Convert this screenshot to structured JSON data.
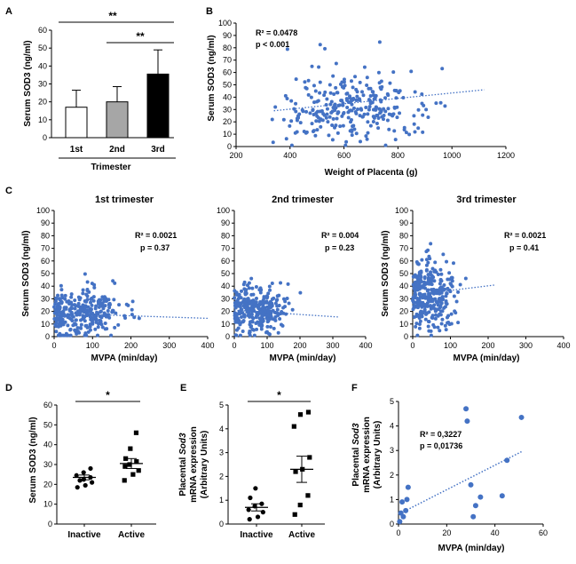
{
  "panels": {
    "A": "A",
    "B": "B",
    "C": "C",
    "D": "D",
    "E": "E",
    "F": "F"
  },
  "colors": {
    "dot": "#4472c4",
    "trend": "#4472c4",
    "bar_1st": "#ffffff",
    "bar_2nd": "#a6a6a6",
    "bar_3rd": "#000000",
    "ink": "#000000"
  },
  "chart_data": [
    {
      "id": "A",
      "type": "bar",
      "title": "",
      "xlabel": "Trimester",
      "ylabel": "Serum SOD3 (ng/ml)",
      "categories": [
        "1st",
        "2nd",
        "3rd"
      ],
      "values": [
        17,
        20,
        35.5
      ],
      "error": [
        9.5,
        8.5,
        13.5
      ],
      "ylim": [
        0,
        60
      ],
      "yticks": [
        0,
        10,
        20,
        30,
        40,
        50,
        60
      ],
      "significance": [
        {
          "from": 0,
          "to": 2,
          "label": "**"
        },
        {
          "from": 1,
          "to": 2,
          "label": "**"
        }
      ]
    },
    {
      "id": "B",
      "type": "scatter",
      "xlabel": "Weight of Placenta (g)",
      "ylabel": "Serum SOD3 (ng/ml)",
      "xlim": [
        200,
        1200
      ],
      "ylim": [
        0,
        100
      ],
      "xticks": [
        200,
        400,
        600,
        800,
        1000,
        1200
      ],
      "yticks": [
        0,
        10,
        20,
        30,
        40,
        50,
        60,
        70,
        80,
        90,
        100
      ],
      "annotation": [
        "R² = 0.0478",
        "p < 0.001"
      ],
      "trend": {
        "x": [
          340,
          1120
        ],
        "y": [
          29,
          46
        ]
      },
      "sample": {
        "n": 290,
        "seed": 11,
        "xmean": 640,
        "xsd": 140,
        "ymean": 34,
        "ysd": 14,
        "xmin": 330,
        "xmax": 1130
      }
    },
    {
      "id": "C1",
      "type": "scatter",
      "title": "1st trimester",
      "xlabel": "MVPA (min/day)",
      "ylabel": "Serum SOD3 (ng/ml)",
      "xlim": [
        0,
        400
      ],
      "ylim": [
        0,
        100
      ],
      "xticks": [
        0,
        100,
        200,
        300,
        400
      ],
      "yticks": [
        0,
        10,
        20,
        30,
        40,
        50,
        60,
        70,
        80,
        90,
        100
      ],
      "annotation": [
        "R² = 0.0021",
        "p = 0.37"
      ],
      "trend": {
        "x": [
          0,
          400
        ],
        "y": [
          18.5,
          14.5
        ]
      },
      "sample": {
        "n": 300,
        "seed": 23,
        "xmean": 70,
        "xsd": 55,
        "ymean": 19,
        "ysd": 9,
        "xmin": 0,
        "xmax": 395
      }
    },
    {
      "id": "C2",
      "type": "scatter",
      "title": "2nd trimester",
      "xlabel": "MVPA (min/day)",
      "ylabel": "",
      "xlim": [
        0,
        400
      ],
      "ylim": [
        0,
        100
      ],
      "xticks": [
        0,
        100,
        200,
        300,
        400
      ],
      "yticks": [
        0,
        10,
        20,
        30,
        40,
        50,
        60,
        70,
        80,
        90,
        100
      ],
      "annotation": [
        "R² = 0.004",
        "p = 0.23"
      ],
      "trend": {
        "x": [
          0,
          320
        ],
        "y": [
          21,
          15.5
        ]
      },
      "sample": {
        "n": 300,
        "seed": 37,
        "xmean": 65,
        "xsd": 45,
        "ymean": 21,
        "ysd": 9,
        "xmin": 0,
        "xmax": 320
      }
    },
    {
      "id": "C3",
      "type": "scatter",
      "title": "3rd trimester",
      "xlabel": "MVPA (min/day)",
      "ylabel": "Serum SOD3 (ng/ml)",
      "xlim": [
        0,
        400
      ],
      "ylim": [
        0,
        100
      ],
      "xticks": [
        0,
        100,
        200,
        300,
        400
      ],
      "yticks": [
        0,
        10,
        20,
        30,
        40,
        50,
        60,
        70,
        80,
        90,
        100
      ],
      "annotation": [
        "R² = 0.0021",
        "p = 0.41"
      ],
      "trend": {
        "x": [
          0,
          220
        ],
        "y": [
          33,
          41
        ]
      },
      "sample": {
        "n": 300,
        "seed": 53,
        "xmean": 45,
        "xsd": 35,
        "ymean": 34,
        "ysd": 14,
        "xmin": 0,
        "xmax": 220
      }
    },
    {
      "id": "D",
      "type": "dot",
      "xlabel": "",
      "ylabel": "Serum SOD3 (ng/ml)",
      "categories": [
        "Inactive",
        "Active"
      ],
      "ylim": [
        0,
        60
      ],
      "yticks": [
        0,
        10,
        20,
        30,
        40,
        50,
        60
      ],
      "groups": [
        {
          "name": "Inactive",
          "marker": "circle",
          "values": [
            18.5,
            19.5,
            21,
            22,
            22.5,
            23.5,
            24.5,
            26,
            28
          ],
          "mean": 23.5,
          "sem": 1.2
        },
        {
          "name": "Active",
          "marker": "square",
          "values": [
            22,
            25,
            27,
            29,
            30,
            31.5,
            33,
            38,
            46
          ],
          "mean": 30.5,
          "sem": 2.5
        }
      ],
      "significance": [
        {
          "from": 0,
          "to": 1,
          "label": "*"
        }
      ]
    },
    {
      "id": "E",
      "type": "dot",
      "xlabel": "",
      "ylabel_lines": [
        "Placental Sod3",
        "mRNA expression",
        "(Arbitrary Units)"
      ],
      "categories": [
        "Inactive",
        "Active"
      ],
      "ylim": [
        0,
        5
      ],
      "yticks": [
        0,
        1,
        2,
        3,
        4,
        5
      ],
      "groups": [
        {
          "name": "Inactive",
          "marker": "circle",
          "values": [
            0.2,
            0.3,
            0.5,
            0.6,
            0.75,
            0.85,
            1.1,
            1.5
          ],
          "mean": 0.7,
          "sem": 0.15
        },
        {
          "name": "Active",
          "marker": "square",
          "values": [
            0.4,
            0.8,
            1.2,
            2.2,
            2.3,
            2.8,
            4.1,
            4.6,
            4.7
          ],
          "mean": 2.3,
          "sem": 0.55
        }
      ],
      "significance": [
        {
          "from": 0,
          "to": 1,
          "label": "*"
        }
      ]
    },
    {
      "id": "F",
      "type": "scatter",
      "xlabel": "MVPA (min/day)",
      "ylabel_lines": [
        "Placental Sod3",
        "mRNA expression",
        "(Arbitrary Units)"
      ],
      "xlim": [
        0,
        60
      ],
      "ylim": [
        0,
        5
      ],
      "xticks": [
        0,
        20,
        40,
        60
      ],
      "yticks": [
        0,
        1,
        2,
        3,
        4,
        5
      ],
      "annotation": [
        "R² = 0,3227",
        "p = 0,01736"
      ],
      "trend": {
        "x": [
          0,
          51
        ],
        "y": [
          0.4,
          2.95
        ]
      },
      "points": [
        {
          "x": 0.5,
          "y": 0.1
        },
        {
          "x": 1,
          "y": 0.45
        },
        {
          "x": 1.5,
          "y": 0.9
        },
        {
          "x": 2,
          "y": 0.3
        },
        {
          "x": 3,
          "y": 0.55
        },
        {
          "x": 3.5,
          "y": 1.0
        },
        {
          "x": 4,
          "y": 1.5
        },
        {
          "x": 28,
          "y": 4.7
        },
        {
          "x": 28.5,
          "y": 4.2
        },
        {
          "x": 30,
          "y": 1.6
        },
        {
          "x": 31,
          "y": 0.3
        },
        {
          "x": 32,
          "y": 0.75
        },
        {
          "x": 34,
          "y": 1.1
        },
        {
          "x": 43,
          "y": 1.15
        },
        {
          "x": 45,
          "y": 2.6
        },
        {
          "x": 51,
          "y": 4.35
        }
      ]
    }
  ]
}
